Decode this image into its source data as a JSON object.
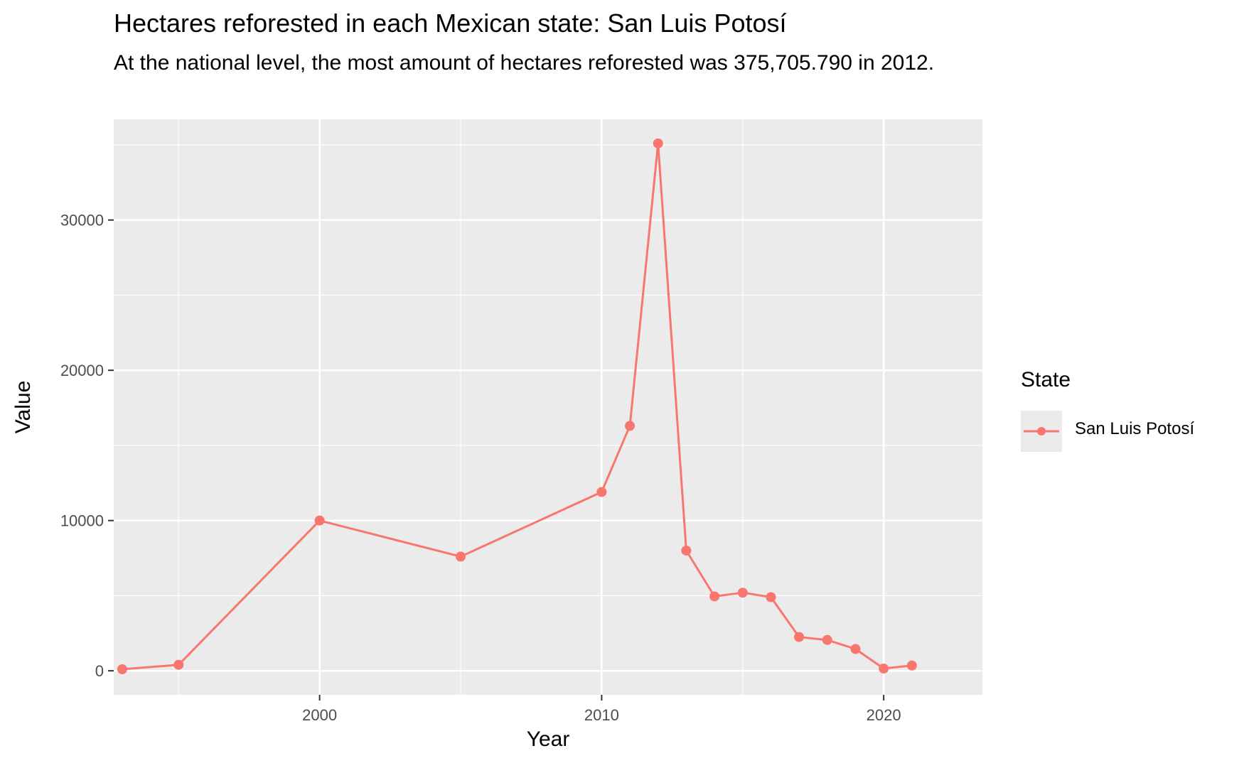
{
  "chart_data": {
    "type": "line",
    "title": "Hectares reforested in each Mexican state: San Luis Potosí",
    "subtitle": "At the national level, the most amount of hectares reforested was 375,705.790 in 2012.",
    "xlabel": "Year",
    "ylabel": "Value",
    "xlim": [
      1992.7,
      2023.5
    ],
    "ylim": [
      -1600,
      36700
    ],
    "x_ticks": [
      2000,
      2010,
      2020
    ],
    "y_ticks": [
      0,
      10000,
      20000,
      30000
    ],
    "grid": true,
    "legend": {
      "title": "State",
      "position": "right"
    },
    "series": [
      {
        "name": "San Luis Potosí",
        "color": "#F8766D",
        "x": [
          1993,
          1995,
          2000,
          2005,
          2010,
          2011,
          2012,
          2013,
          2014,
          2015,
          2016,
          2017,
          2018,
          2019,
          2020,
          2021
        ],
        "y": [
          100,
          400,
          10000,
          7600,
          11900,
          16300,
          35100,
          8000,
          4950,
          5200,
          4900,
          2250,
          2050,
          1450,
          150,
          350
        ]
      }
    ]
  }
}
